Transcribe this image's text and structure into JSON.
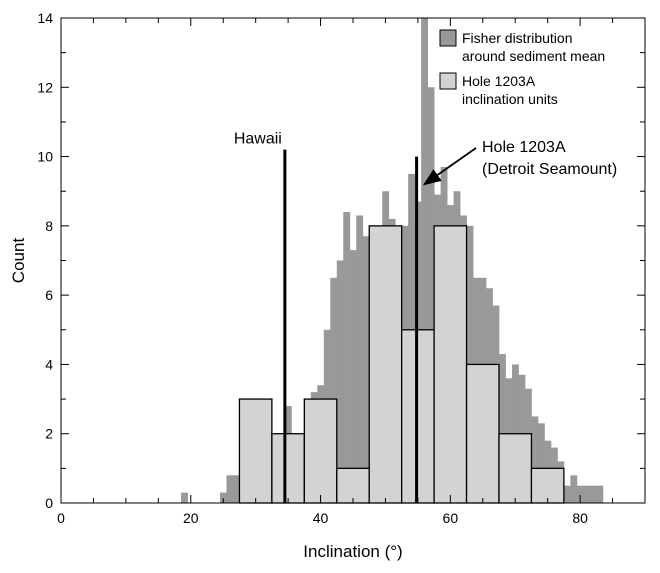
{
  "chart_data": {
    "type": "bar",
    "xlabel": "Inclination (°)",
    "ylabel": "Count",
    "xlim": [
      0,
      90
    ],
    "ylim": [
      0,
      14
    ],
    "x_ticks": [
      0,
      20,
      40,
      60,
      80
    ],
    "y_ticks": [
      0,
      2,
      4,
      6,
      8,
      10,
      12,
      14
    ],
    "grid": false,
    "legend_position": "top-right",
    "colors": {
      "fisher": "#999999",
      "hole": "#d3d3d3",
      "line": "#000000"
    },
    "series": [
      {
        "name": "Fisher distribution around sediment mean",
        "kind": "histogram",
        "bin_width": 1,
        "bins": [
          [
            18.5,
            0.3
          ],
          [
            24.5,
            0.3
          ],
          [
            25.5,
            0.8
          ],
          [
            26.5,
            0.8
          ],
          [
            27.5,
            1.0
          ],
          [
            28.5,
            1.0
          ],
          [
            29.5,
            1.2
          ],
          [
            30.5,
            1.4
          ],
          [
            31.5,
            1.0
          ],
          [
            32.5,
            1.5
          ],
          [
            33.5,
            1.5
          ],
          [
            34.5,
            2.8
          ],
          [
            35.5,
            1.6
          ],
          [
            36.5,
            1.7
          ],
          [
            37.5,
            2.9
          ],
          [
            38.5,
            3.2
          ],
          [
            39.5,
            3.4
          ],
          [
            40.5,
            5.0
          ],
          [
            41.5,
            6.5
          ],
          [
            42.5,
            7.0
          ],
          [
            43.5,
            8.4
          ],
          [
            44.5,
            7.3
          ],
          [
            45.5,
            8.3
          ],
          [
            46.5,
            7.7
          ],
          [
            47.5,
            6.8
          ],
          [
            48.5,
            7.8
          ],
          [
            49.5,
            9.0
          ],
          [
            50.5,
            8.2
          ],
          [
            51.5,
            8.0
          ],
          [
            52.5,
            8.0
          ],
          [
            53.5,
            9.5
          ],
          [
            54.5,
            8.7
          ],
          [
            55.5,
            14.0
          ],
          [
            56.5,
            12.0
          ],
          [
            57.5,
            8.9
          ],
          [
            58.5,
            9.7
          ],
          [
            59.5,
            8.6
          ],
          [
            60.5,
            9.0
          ],
          [
            61.5,
            8.3
          ],
          [
            62.5,
            8.0
          ],
          [
            63.5,
            6.5
          ],
          [
            64.5,
            6.5
          ],
          [
            65.5,
            6.2
          ],
          [
            66.5,
            5.7
          ],
          [
            67.5,
            4.3
          ],
          [
            68.5,
            3.6
          ],
          [
            69.5,
            4.0
          ],
          [
            70.5,
            3.7
          ],
          [
            71.5,
            3.3
          ],
          [
            72.5,
            2.5
          ],
          [
            73.5,
            2.3
          ],
          [
            74.5,
            1.8
          ],
          [
            75.5,
            1.6
          ],
          [
            76.5,
            1.2
          ],
          [
            77.5,
            0.5
          ],
          [
            78.5,
            0.8
          ],
          [
            79.5,
            0.5
          ],
          [
            80.5,
            0.5
          ],
          [
            81.5,
            0.5
          ],
          [
            82.5,
            0.5
          ]
        ]
      },
      {
        "name": "Hole 1203A inclination units",
        "kind": "histogram",
        "bin_width": 5,
        "bins": [
          [
            27.5,
            3
          ],
          [
            32.5,
            2
          ],
          [
            37.5,
            3
          ],
          [
            42.5,
            1
          ],
          [
            47.5,
            8
          ],
          [
            52.5,
            5
          ],
          [
            57.5,
            8
          ],
          [
            62.5,
            4
          ],
          [
            67.5,
            2
          ],
          [
            72.5,
            1
          ]
        ]
      }
    ],
    "annotations": [
      {
        "label": "Hawaii",
        "x": 34.5,
        "y_top": 10.2
      },
      {
        "label_line1": "Hole 1203A",
        "label_line2": "(Detroit Seamount)",
        "x": 54.8,
        "y_top": 10.0,
        "arrow_to": [
          56.0,
          9.2
        ]
      }
    ],
    "legend": [
      {
        "line1": "Fisher distribution",
        "line2": "around sediment mean"
      },
      {
        "line1": "Hole 1203A",
        "line2": "inclination units"
      }
    ]
  }
}
